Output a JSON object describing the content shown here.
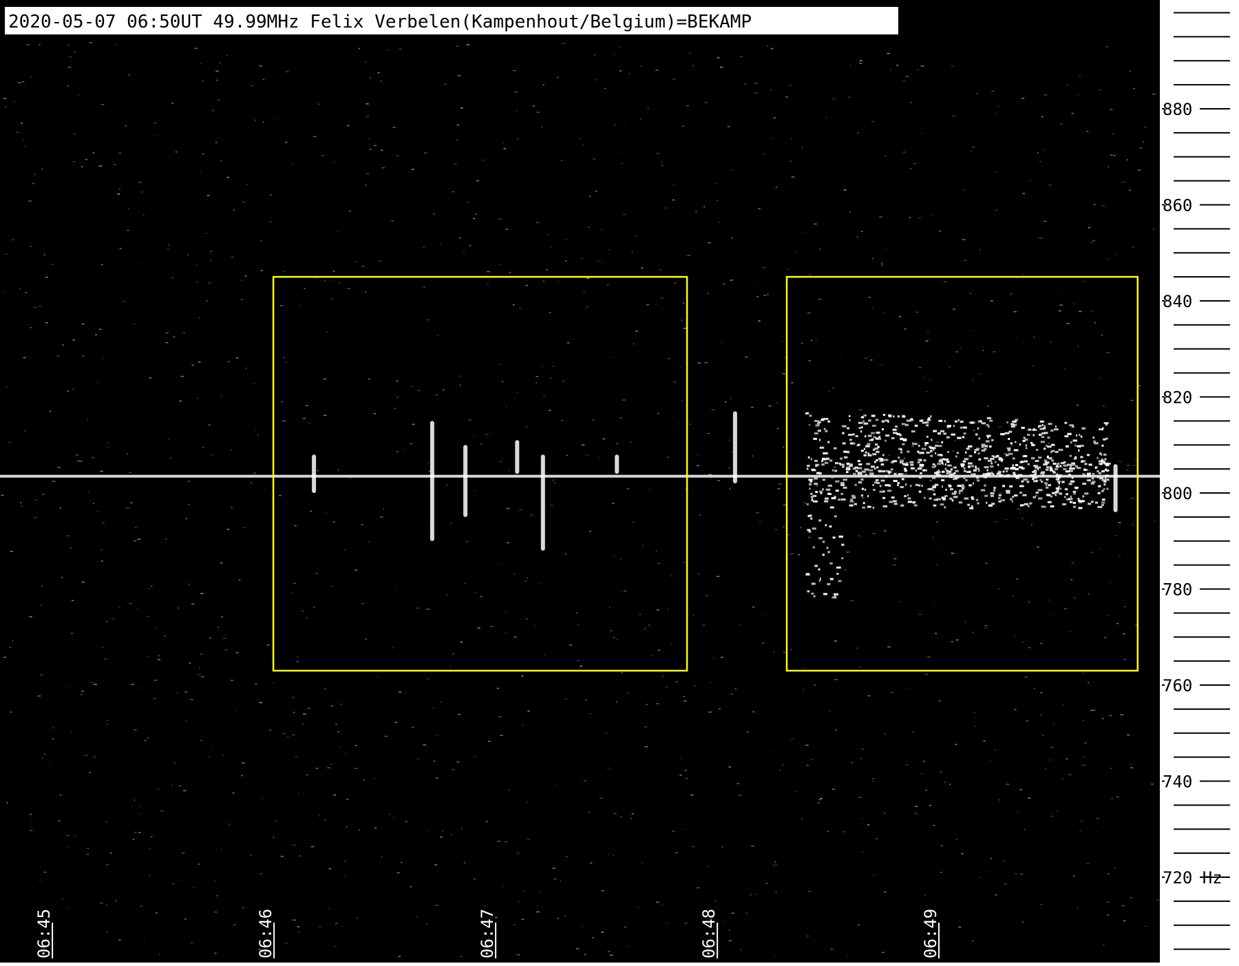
{
  "header": {
    "title": "2020-05-07 06:50UT 49.99MHz Felix Verbelen(Kampenhout/Belgium)=BEKAMP"
  },
  "colors": {
    "background": "#000000",
    "signal": "#ffffff",
    "highlight_box": "#ffff00",
    "scale_background": "#ffffff"
  },
  "chart_data": {
    "type": "heatmap",
    "title": "2020-05-07 06:50UT 49.99MHz Felix Verbelen(Kampenhout/Belgium)=BEKAMP",
    "xlabel": "",
    "ylabel": "",
    "y_unit": "Hz",
    "x_range": [
      "06:44:46",
      "06:50:00"
    ],
    "y_range": [
      705,
      900
    ],
    "x_ticks": [
      "06:45",
      "06:46",
      "06:47",
      "06:48",
      "06:49"
    ],
    "y_ticks": [
      880,
      860,
      840,
      820,
      800,
      780,
      760,
      740,
      720
    ],
    "grid": false,
    "carrier": {
      "frequency": 803.5
    },
    "highlight_boxes": [
      {
        "t_start": "06:46:00",
        "t_end": "06:47:52",
        "f_low": 763,
        "f_high": 845
      },
      {
        "t_start": "06:48:19",
        "t_end": "06:49:54",
        "f_low": 763,
        "f_high": 845
      }
    ],
    "meteor_echoes": [
      {
        "time": "06:46:11",
        "f_low": 800,
        "f_high": 808
      },
      {
        "time": "06:46:43",
        "f_low": 790,
        "f_high": 815
      },
      {
        "time": "06:46:52",
        "f_low": 795,
        "f_high": 810
      },
      {
        "time": "06:47:13",
        "f_low": 788,
        "f_high": 808
      },
      {
        "time": "06:47:06",
        "f_low": 804,
        "f_high": 811
      },
      {
        "time": "06:47:33",
        "f_low": 804,
        "f_high": 808
      },
      {
        "time": "06:48:05",
        "f_low": 802,
        "f_high": 817
      },
      {
        "time": "06:49:48",
        "f_low": 796,
        "f_high": 806
      }
    ]
  }
}
